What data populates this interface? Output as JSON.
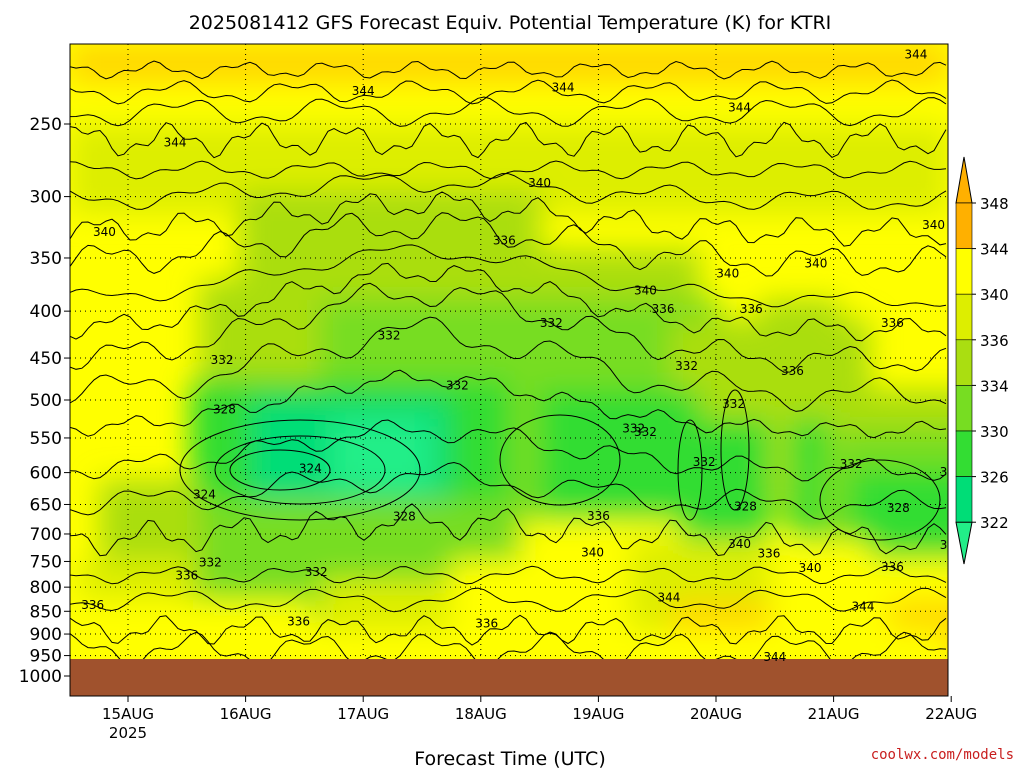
{
  "colors": {
    "ground": "#a0522d",
    "credit": "#c81e1e",
    "palette": [
      "#22ee88",
      "#00dd77",
      "#33dd33",
      "#77dd22",
      "#aade11",
      "#ddee00",
      "#ffff00",
      "#ffd700",
      "#ffb000"
    ]
  },
  "chart_data": {
    "type": "heatmap",
    "title": "2025081412 GFS Forecast Equiv. Potential Temperature (K) for KTRI",
    "xlabel": "Forecast Time (UTC)",
    "ylabel": "",
    "credit": "coolwx.com/models",
    "x_ticks": [
      "15AUG",
      "16AUG",
      "17AUG",
      "18AUG",
      "19AUG",
      "20AUG",
      "21AUG",
      "22AUG"
    ],
    "x_year_label": "2025",
    "y_ticks": [
      "250",
      "300",
      "350",
      "400",
      "450",
      "500",
      "550",
      "600",
      "650",
      "700",
      "750",
      "800",
      "850",
      "900",
      "950",
      "1000"
    ],
    "y_pressure_values": [
      250,
      300,
      350,
      400,
      450,
      500,
      550,
      600,
      650,
      700,
      750,
      800,
      850,
      900,
      950,
      1000
    ],
    "y_log_scale": true,
    "grid": true,
    "colorbar_ticks": [
      "348",
      "344",
      "340",
      "336",
      "334",
      "330",
      "326",
      "322"
    ],
    "colorbar_levels": [
      322,
      326,
      330,
      334,
      336,
      340,
      344,
      348
    ],
    "contour_interval_K": 4,
    "contour_labels": [
      {
        "t": "344",
        "day": 0.4,
        "p": 262
      },
      {
        "t": "344",
        "day": 2.0,
        "p": 230
      },
      {
        "t": "344",
        "day": 3.7,
        "p": 228
      },
      {
        "t": "344",
        "day": 5.2,
        "p": 240
      },
      {
        "t": "344",
        "day": 6.7,
        "p": 210
      },
      {
        "t": "340",
        "day": -0.2,
        "p": 328
      },
      {
        "t": "340",
        "day": 3.5,
        "p": 290
      },
      {
        "t": "340",
        "day": 4.4,
        "p": 380
      },
      {
        "t": "340",
        "day": 5.1,
        "p": 364
      },
      {
        "t": "340",
        "day": 5.85,
        "p": 355
      },
      {
        "t": "340",
        "day": 6.85,
        "p": 322
      },
      {
        "t": "336",
        "day": 3.2,
        "p": 335
      },
      {
        "t": "336",
        "day": 4.55,
        "p": 398
      },
      {
        "t": "336",
        "day": 5.3,
        "p": 398
      },
      {
        "t": "336",
        "day": 5.65,
        "p": 465
      },
      {
        "t": "336",
        "day": 6.5,
        "p": 412
      },
      {
        "t": "332",
        "day": 2.22,
        "p": 425
      },
      {
        "t": "332",
        "day": 0.8,
        "p": 452
      },
      {
        "t": "332",
        "day": 2.8,
        "p": 482
      },
      {
        "t": "332",
        "day": 3.6,
        "p": 412
      },
      {
        "t": "332",
        "day": 4.3,
        "p": 537
      },
      {
        "t": "332",
        "day": 4.4,
        "p": 542
      },
      {
        "t": "332",
        "day": 4.75,
        "p": 459
      },
      {
        "t": "332",
        "day": 5.15,
        "p": 505
      },
      {
        "t": "332",
        "day": 4.9,
        "p": 584
      },
      {
        "t": "332",
        "day": 6.15,
        "p": 587
      },
      {
        "t": "332",
        "day": 7.0,
        "p": 599
      },
      {
        "t": "332",
        "day": 7.0,
        "p": 720
      },
      {
        "t": "332",
        "day": 0.7,
        "p": 752
      },
      {
        "t": "332",
        "day": 1.6,
        "p": 770
      },
      {
        "t": "328",
        "day": 0.82,
        "p": 512
      },
      {
        "t": "328",
        "day": 2.35,
        "p": 670
      },
      {
        "t": "328",
        "day": 5.25,
        "p": 653
      },
      {
        "t": "328",
        "day": 6.55,
        "p": 656
      },
      {
        "t": "324",
        "day": 0.65,
        "p": 634
      },
      {
        "t": "324",
        "day": 1.55,
        "p": 594
      },
      {
        "t": "336",
        "day": 0.5,
        "p": 777
      },
      {
        "t": "336",
        "day": -0.3,
        "p": 837
      },
      {
        "t": "336",
        "day": 1.45,
        "p": 872
      },
      {
        "t": "336",
        "day": 3.05,
        "p": 876
      },
      {
        "t": "336",
        "day": 4.0,
        "p": 669
      },
      {
        "t": "336",
        "day": 5.45,
        "p": 735
      },
      {
        "t": "336",
        "day": 6.5,
        "p": 761
      },
      {
        "t": "340",
        "day": 3.95,
        "p": 733
      },
      {
        "t": "340",
        "day": 5.8,
        "p": 762
      },
      {
        "t": "340",
        "day": 5.2,
        "p": 718
      },
      {
        "t": "344",
        "day": 4.6,
        "p": 821
      },
      {
        "t": "344",
        "day": 6.25,
        "p": 840
      },
      {
        "t": "344",
        "day": 5.5,
        "p": 953
      }
    ]
  }
}
